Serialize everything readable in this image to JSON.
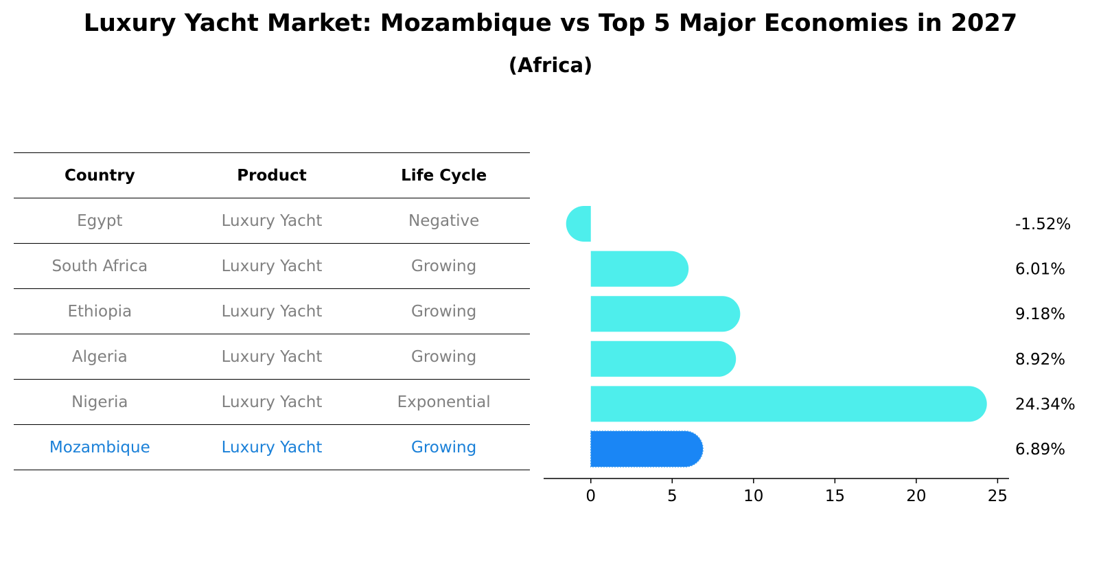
{
  "title": "Luxury Yacht Market: Mozambique vs Top 5 Major Economies in 2027",
  "subtitle": "(Africa)",
  "table": {
    "headers": [
      "Country",
      "Product",
      "Life Cycle"
    ],
    "rows": [
      {
        "country": "Egypt",
        "product": "Luxury Yacht",
        "life_cycle": "Negative"
      },
      {
        "country": "South Africa",
        "product": "Luxury Yacht",
        "life_cycle": "Growing"
      },
      {
        "country": "Ethiopia",
        "product": "Luxury Yacht",
        "life_cycle": "Growing"
      },
      {
        "country": "Algeria",
        "product": "Luxury Yacht",
        "life_cycle": "Growing"
      },
      {
        "country": "Nigeria",
        "product": "Luxury Yacht",
        "life_cycle": "Exponential"
      },
      {
        "country": "Mozambique",
        "product": "Luxury Yacht",
        "life_cycle": "Growing"
      }
    ],
    "highlight_index": 5
  },
  "chart_data": {
    "type": "bar",
    "orientation": "horizontal",
    "categories": [
      "Egypt",
      "South Africa",
      "Ethiopia",
      "Algeria",
      "Nigeria",
      "Mozambique"
    ],
    "values": [
      -1.52,
      6.01,
      9.18,
      8.92,
      24.34,
      6.89
    ],
    "value_labels": [
      "-1.52%",
      "6.01%",
      "9.18%",
      "8.92%",
      "24.34%",
      "6.89%"
    ],
    "xlim": [
      -2.9,
      25.7
    ],
    "xticks": [
      0,
      5,
      10,
      15,
      20,
      25
    ],
    "grid": false,
    "colors": {
      "default": "#4eeeec",
      "highlight": "#1a86f5"
    }
  }
}
